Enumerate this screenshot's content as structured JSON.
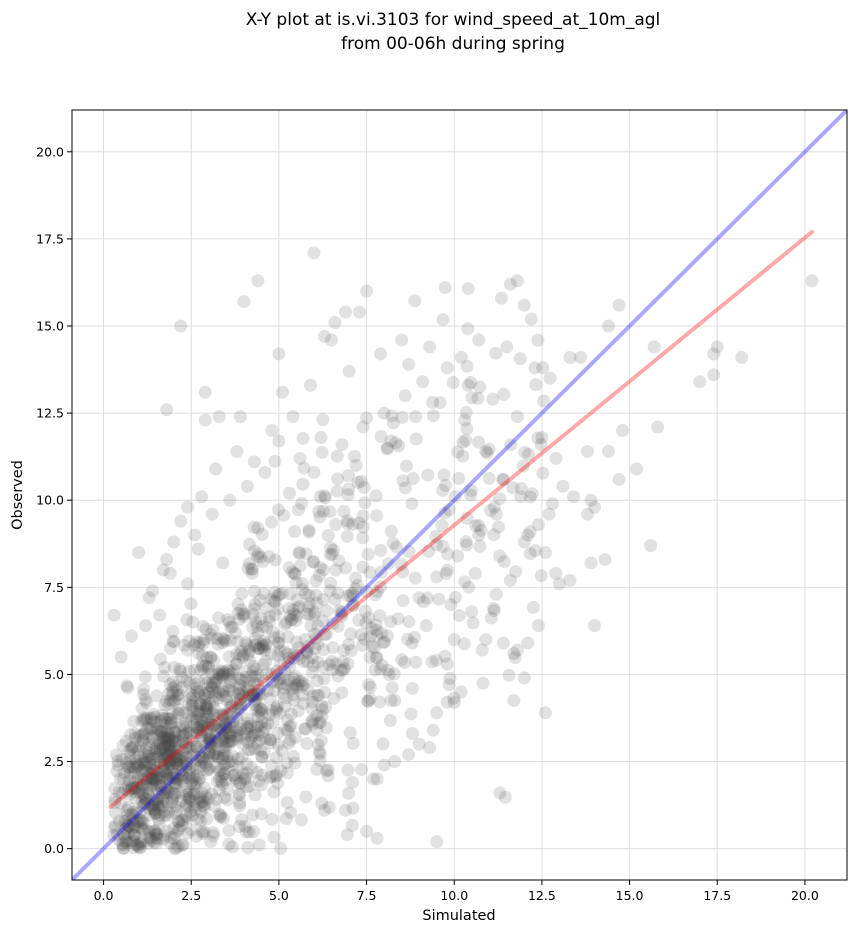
{
  "chart_data": {
    "type": "scatter",
    "title": [
      "X-Y plot at is.vi.3103 for wind_speed_at_10m_agl",
      "from 00-06h during spring"
    ],
    "xlabel": "Simulated",
    "ylabel": "Observed",
    "xlim": [
      -0.9,
      21.2
    ],
    "ylim": [
      -0.9,
      21.2
    ],
    "xticks": [
      "0.0",
      "2.5",
      "5.0",
      "7.5",
      "10.0",
      "12.5",
      "15.0",
      "17.5",
      "20.0"
    ],
    "yticks": [
      "0.0",
      "2.5",
      "5.0",
      "7.5",
      "10.0",
      "12.5",
      "15.0",
      "17.5",
      "20.0"
    ],
    "grid": true,
    "colors": {
      "points": "#444444",
      "fit_line": "#ff0000",
      "one_to_one": "#0000ff",
      "grid": "#dddddd"
    },
    "reference_line": {
      "name": "1:1",
      "x": [
        -0.9,
        21.2
      ],
      "y": [
        -0.9,
        21.2
      ]
    },
    "fit_line": {
      "x": [
        0.2,
        20.2
      ],
      "y": [
        1.2,
        17.7
      ]
    },
    "points_note": "cloud",
    "cluster_points": {
      "n": 1500,
      "seed": 7
    },
    "points": [
      [
        6.0,
        17.1
      ],
      [
        4.4,
        16.3
      ],
      [
        4.0,
        15.7
      ],
      [
        7.5,
        16.0
      ],
      [
        11.8,
        16.3
      ],
      [
        11.6,
        16.2
      ],
      [
        20.2,
        16.3
      ],
      [
        14.7,
        15.6
      ],
      [
        12.0,
        15.6
      ],
      [
        12.2,
        15.2
      ],
      [
        6.9,
        15.4
      ],
      [
        7.3,
        15.4
      ],
      [
        2.2,
        15.0
      ],
      [
        14.4,
        15.0
      ],
      [
        6.6,
        15.1
      ],
      [
        6.3,
        14.7
      ],
      [
        8.5,
        14.6
      ],
      [
        17.5,
        14.4
      ],
      [
        15.7,
        14.4
      ],
      [
        18.2,
        14.1
      ],
      [
        17.4,
        14.2
      ],
      [
        12.3,
        13.8
      ],
      [
        13.3,
        14.1
      ],
      [
        13.6,
        14.1
      ],
      [
        17.0,
        13.4
      ],
      [
        17.4,
        13.6
      ],
      [
        5.0,
        14.2
      ],
      [
        2.9,
        13.1
      ],
      [
        5.1,
        13.1
      ],
      [
        15.8,
        12.1
      ],
      [
        1.8,
        12.6
      ],
      [
        3.3,
        12.4
      ],
      [
        3.9,
        12.4
      ],
      [
        2.9,
        12.3
      ],
      [
        14.8,
        12.0
      ],
      [
        15.2,
        10.9
      ],
      [
        14.7,
        10.6
      ],
      [
        13.9,
        10.0
      ],
      [
        14.4,
        11.4
      ],
      [
        13.8,
        9.6
      ],
      [
        14.0,
        9.8
      ],
      [
        1.0,
        8.5
      ],
      [
        0.3,
        6.7
      ],
      [
        0.5,
        5.5
      ],
      [
        13.9,
        8.2
      ],
      [
        14.3,
        8.3
      ],
      [
        15.6,
        8.7
      ],
      [
        13.3,
        7.7
      ],
      [
        13.0,
        7.6
      ],
      [
        12.9,
        7.9
      ],
      [
        12.6,
        8.5
      ],
      [
        14.0,
        6.4
      ],
      [
        12.4,
        6.4
      ],
      [
        12.1,
        5.9
      ],
      [
        11.8,
        5.7
      ],
      [
        11.7,
        5.6
      ],
      [
        11.4,
        5.9
      ],
      [
        12.0,
        4.9
      ],
      [
        10.9,
        6.0
      ],
      [
        10.8,
        5.7
      ],
      [
        12.6,
        3.9
      ],
      [
        10.2,
        4.5
      ],
      [
        9.8,
        4.2
      ],
      [
        9.5,
        3.9
      ],
      [
        9.4,
        3.4
      ],
      [
        9.3,
        2.9
      ],
      [
        8.7,
        2.7
      ],
      [
        8.0,
        2.4
      ],
      [
        7.7,
        2.0
      ],
      [
        7.1,
        1.9
      ],
      [
        11.3,
        1.6
      ],
      [
        7.5,
        0.5
      ],
      [
        7.8,
        0.3
      ],
      [
        9.5,
        0.2
      ],
      [
        6.3,
        1.1
      ],
      [
        6.9,
        1.1
      ],
      [
        7.8,
        2.0
      ],
      [
        8.3,
        2.5
      ],
      [
        9.0,
        3.0
      ],
      [
        9.8,
        5.3
      ],
      [
        10.0,
        6.0
      ],
      [
        10.5,
        6.8
      ],
      [
        11.2,
        7.3
      ],
      [
        11.6,
        7.7
      ],
      [
        12.0,
        8.8
      ],
      [
        12.4,
        9.3
      ],
      [
        12.8,
        9.9
      ],
      [
        13.1,
        10.4
      ],
      [
        12.9,
        11.2
      ],
      [
        12.5,
        11.8
      ],
      [
        11.8,
        12.4
      ],
      [
        11.1,
        12.9
      ],
      [
        10.4,
        13.3
      ],
      [
        9.8,
        13.8
      ],
      [
        9.1,
        13.4
      ],
      [
        8.6,
        13.0
      ],
      [
        8.0,
        12.5
      ],
      [
        7.4,
        12.1
      ],
      [
        6.8,
        11.6
      ],
      [
        6.2,
        11.8
      ],
      [
        5.6,
        11.2
      ],
      [
        5.0,
        11.7
      ],
      [
        4.6,
        10.8
      ],
      [
        4.1,
        10.4
      ],
      [
        3.6,
        10.0
      ],
      [
        3.1,
        9.6
      ],
      [
        2.6,
        9.0
      ],
      [
        2.2,
        9.4
      ],
      [
        1.8,
        8.3
      ],
      [
        1.4,
        7.4
      ],
      [
        1.9,
        7.9
      ],
      [
        2.4,
        7.6
      ],
      [
        1.2,
        6.4
      ],
      [
        0.8,
        6.1
      ],
      [
        1.6,
        6.7
      ],
      [
        2.7,
        8.6
      ],
      [
        3.4,
        8.2
      ],
      [
        4.4,
        9.2
      ],
      [
        5.3,
        10.2
      ],
      [
        6.0,
        10.8
      ],
      [
        7.2,
        11.0
      ],
      [
        8.2,
        11.7
      ],
      [
        8.9,
        12.4
      ],
      [
        9.6,
        12.8
      ],
      [
        10.3,
        12.3
      ],
      [
        10.9,
        11.4
      ],
      [
        11.4,
        10.6
      ],
      [
        11.9,
        10.1
      ],
      [
        11.2,
        9.6
      ],
      [
        10.7,
        9.0
      ],
      [
        10.1,
        8.4
      ],
      [
        9.5,
        7.8
      ],
      [
        9.0,
        7.2
      ],
      [
        8.4,
        6.6
      ],
      [
        8.8,
        5.9
      ],
      [
        9.2,
        6.4
      ],
      [
        9.9,
        7.0
      ],
      [
        10.6,
        7.9
      ],
      [
        11.3,
        8.4
      ],
      [
        12.1,
        9.0
      ],
      [
        12.7,
        9.6
      ],
      [
        13.4,
        10.1
      ],
      [
        13.8,
        11.4
      ],
      [
        11.5,
        14.4
      ],
      [
        10.7,
        14.6
      ],
      [
        10.2,
        14.1
      ],
      [
        9.3,
        14.4
      ],
      [
        8.7,
        13.9
      ],
      [
        7.9,
        14.2
      ],
      [
        7.0,
        13.7
      ],
      [
        6.5,
        14.6
      ],
      [
        5.9,
        13.3
      ],
      [
        5.4,
        12.4
      ],
      [
        4.8,
        12.0
      ],
      [
        4.3,
        11.1
      ],
      [
        3.8,
        11.4
      ],
      [
        3.2,
        10.9
      ],
      [
        2.8,
        10.1
      ],
      [
        2.4,
        9.8
      ],
      [
        2.0,
        8.8
      ],
      [
        1.7,
        8.0
      ],
      [
        1.3,
        7.2
      ]
    ]
  }
}
